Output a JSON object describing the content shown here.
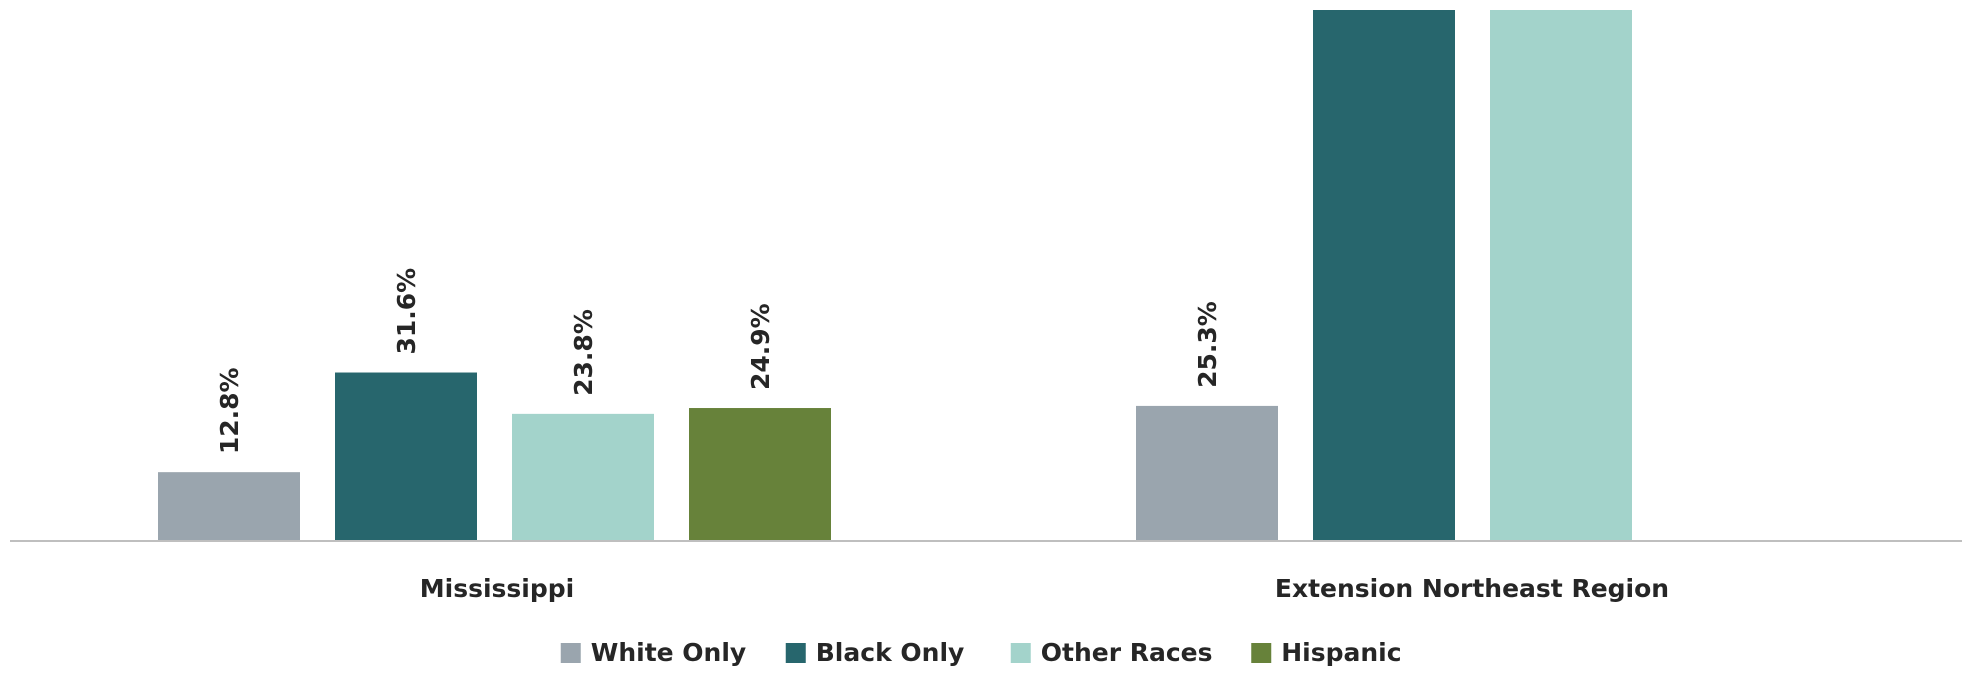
{
  "chart_data": {
    "type": "bar",
    "title": "",
    "xlabel": "",
    "ylabel": "",
    "categories": [
      "Mississippi",
      "Extension Northeast Region"
    ],
    "series": [
      {
        "name": "White Only",
        "color": "#9aa5ae",
        "values": [
          12.8,
          25.3
        ],
        "labels": [
          "12.8%",
          "25.3%"
        ]
      },
      {
        "name": "Black Only",
        "color": "#27666d",
        "values": [
          31.6,
          100
        ],
        "labels": [
          "31.6%",
          null
        ]
      },
      {
        "name": "Other Races",
        "color": "#a3d3cb",
        "values": [
          23.8,
          100
        ],
        "labels": [
          "23.8%",
          null
        ]
      },
      {
        "name": "Hispanic",
        "color": "#67823a",
        "values": [
          24.9,
          null
        ],
        "labels": [
          "24.9%",
          null
        ]
      }
    ],
    "ylim": [
      0,
      100
    ],
    "grid": false,
    "legend_position": "bottom"
  }
}
